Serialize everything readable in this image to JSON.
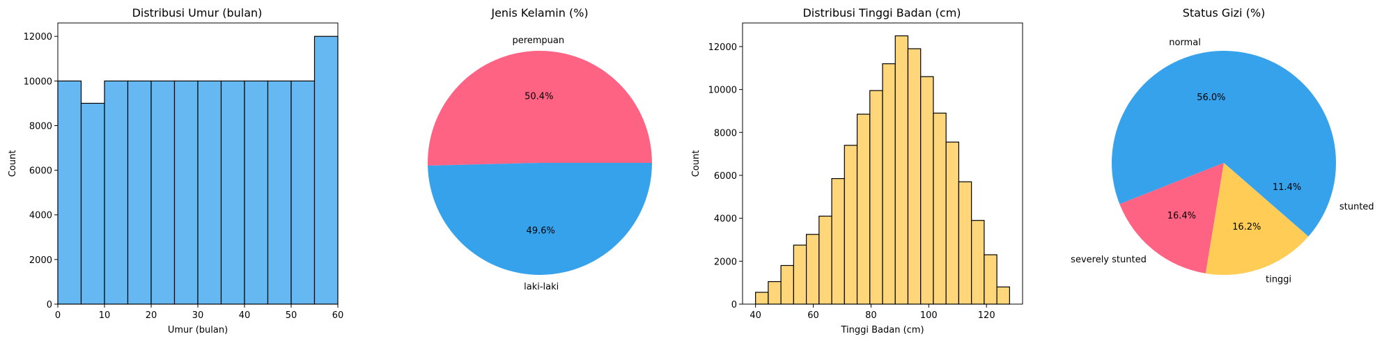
{
  "chart_data": [
    {
      "type": "bar",
      "title": "Distribusi Umur (bulan)",
      "xlabel": "Umur (bulan)",
      "ylabel": "Count",
      "xlim": [
        0,
        60
      ],
      "ylim": [
        0,
        12600
      ],
      "xticks": [
        0,
        10,
        20,
        30,
        40,
        50,
        60
      ],
      "yticks": [
        0,
        2000,
        4000,
        6000,
        8000,
        10000,
        12000
      ],
      "bin_edges": [
        0,
        5,
        10,
        15,
        20,
        25,
        30,
        35,
        40,
        45,
        50,
        55,
        60
      ],
      "values": [
        10000,
        9000,
        10000,
        10000,
        10000,
        10000,
        10000,
        10000,
        10000,
        10000,
        10000,
        12000
      ],
      "color": "#66b8f2",
      "edge_color": "#000000"
    },
    {
      "type": "pie",
      "title": "Jenis Kelamin (%)",
      "labels": [
        "perempuan",
        "laki-laki"
      ],
      "values": [
        50.4,
        49.6
      ],
      "value_labels": [
        "50.4%",
        "49.6%"
      ],
      "colors": [
        "#ff6384",
        "#36a2eb"
      ]
    },
    {
      "type": "bar",
      "title": "Distribusi Tinggi Badan (cm)",
      "xlabel": "Tinggi Badan (cm)",
      "ylabel": "Count",
      "xlim": [
        35.5,
        132.5
      ],
      "ylim": [
        0,
        13100
      ],
      "xticks": [
        40,
        60,
        80,
        100,
        120
      ],
      "yticks": [
        0,
        2000,
        4000,
        6000,
        8000,
        10000,
        12000
      ],
      "bin_edges": [
        40,
        44.4,
        48.8,
        53.2,
        57.6,
        62,
        66.4,
        70.8,
        75.2,
        79.6,
        84,
        88.4,
        92.8,
        97.2,
        101.6,
        106,
        110.4,
        114.8,
        119.2,
        123.6,
        128
      ],
      "values": [
        550,
        1050,
        1800,
        2750,
        3250,
        4100,
        5850,
        7400,
        8850,
        9950,
        11200,
        12500,
        11900,
        10600,
        8900,
        7550,
        5700,
        3900,
        2300,
        800
      ],
      "color": "#ffd77a",
      "edge_color": "#000000"
    },
    {
      "type": "pie",
      "title": "Status Gizi (%)",
      "labels": [
        "normal",
        "severely stunted",
        "tinggi",
        "stunted"
      ],
      "values": [
        56.0,
        16.4,
        16.2,
        11.4
      ],
      "value_labels": [
        "56.0%",
        "16.4%",
        "16.2%",
        "11.4%"
      ],
      "colors": [
        "#36a2eb",
        "#ff6384",
        "#ffcd56",
        "#36a2eb"
      ]
    }
  ]
}
